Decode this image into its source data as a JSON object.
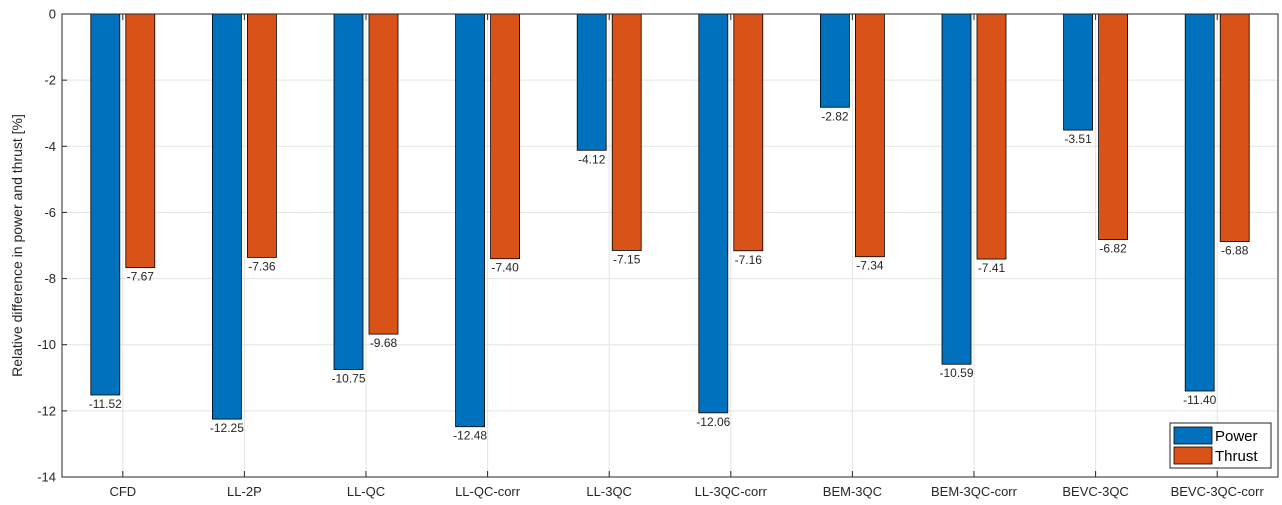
{
  "chart_data": {
    "type": "bar",
    "categories": [
      "CFD",
      "LL-2P",
      "LL-QC",
      "LL-QC-corr",
      "LL-3QC",
      "LL-3QC-corr",
      "BEM-3QC",
      "BEM-3QC-corr",
      "BEVC-3QC",
      "BEVC-3QC-corr"
    ],
    "series": [
      {
        "name": "Power",
        "color": "#0072BD",
        "values": [
          -11.52,
          -12.25,
          -10.75,
          -12.48,
          -4.12,
          -12.06,
          -2.82,
          -10.59,
          -3.51,
          -11.4
        ],
        "labels": [
          "-11.52",
          "-12.25",
          "-10.75",
          "-12.48",
          "-4.12",
          "-12.06",
          "-2.82",
          "-10.59",
          "-3.51",
          "-11.40"
        ]
      },
      {
        "name": "Thrust",
        "color": "#D95319",
        "values": [
          -7.67,
          -7.36,
          -9.68,
          -7.4,
          -7.15,
          -7.16,
          -7.34,
          -7.41,
          -6.82,
          -6.88
        ],
        "labels": [
          "-7.67",
          "-7.36",
          "-9.68",
          "-7.40",
          "-7.15",
          "-7.16",
          "-7.34",
          "-7.41",
          "-6.82",
          "-6.88"
        ]
      }
    ],
    "title": "",
    "xlabel": "",
    "ylabel": "Relative difference in power and thrust [%]",
    "ylim": [
      -14,
      0
    ],
    "yticks": [
      0,
      -2,
      -4,
      -6,
      -8,
      -10,
      -12,
      -14
    ],
    "ytick_labels": [
      "0",
      "-2",
      "-4",
      "-6",
      "-8",
      "-10",
      "-12",
      "-14"
    ],
    "grid": true,
    "legend_position": "bottom-right"
  }
}
